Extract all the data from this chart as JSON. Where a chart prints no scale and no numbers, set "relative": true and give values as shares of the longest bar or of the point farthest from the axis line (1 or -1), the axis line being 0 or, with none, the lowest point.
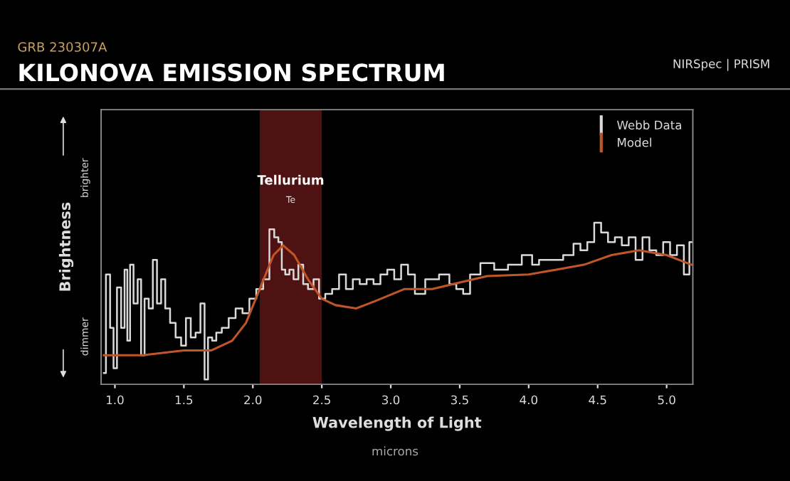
{
  "chart_data": {
    "type": "step",
    "title": "KILONOVA EMISSION SPECTRUM",
    "subtitle": "GRB 230307A",
    "xlabel": "Wavelength of Light",
    "ylabel": "Brightness",
    "relative": true,
    "annotations": [
      "Te",
      "brighter",
      "dimmer",
      "microns",
      "NIRSpec | PRISM"
    ],
    "xlim": [
      0.9,
      5.19
    ],
    "xticks": [
      {
        "value": 1,
        "label": "1.0"
      },
      {
        "value": 1.5,
        "label": "1.5"
      },
      {
        "value": 2,
        "label": "2.0"
      },
      {
        "value": 2.5,
        "label": "2.5"
      },
      {
        "value": 3,
        "label": "3.0"
      },
      {
        "value": 3.5,
        "label": "3.5"
      },
      {
        "value": 4,
        "label": "4.0"
      },
      {
        "value": 4.5,
        "label": "4.5"
      },
      {
        "value": 5,
        "label": "5.0"
      }
    ],
    "bands": [
      {
        "axis": "x",
        "from": 2.05,
        "to": 2.5,
        "label": "Tellurium",
        "color": "#6a1818"
      }
    ],
    "legend": "top right",
    "grid": false,
    "series": [
      {
        "name": "Webb Data",
        "color": "#d9d9d9",
        "x": [
          0.92,
          0.95,
          0.98,
          1.0,
          1.03,
          1.06,
          1.08,
          1.1,
          1.12,
          1.15,
          1.18,
          1.2,
          1.23,
          1.26,
          1.29,
          1.32,
          1.35,
          1.38,
          1.42,
          1.46,
          1.5,
          1.53,
          1.57,
          1.6,
          1.64,
          1.66,
          1.69,
          1.72,
          1.75,
          1.8,
          1.85,
          1.9,
          1.95,
          2.0,
          2.05,
          2.1,
          2.14,
          2.17,
          2.2,
          2.22,
          2.25,
          2.28,
          2.31,
          2.35,
          2.38,
          2.42,
          2.46,
          2.5,
          2.55,
          2.6,
          2.65,
          2.7,
          2.75,
          2.8,
          2.85,
          2.9,
          2.95,
          3.0,
          3.05,
          3.1,
          3.15,
          3.2,
          3.3,
          3.4,
          3.45,
          3.5,
          3.55,
          3.6,
          3.7,
          3.8,
          3.9,
          4.0,
          4.05,
          4.1,
          4.2,
          4.3,
          4.35,
          4.4,
          4.45,
          4.5,
          4.55,
          4.6,
          4.65,
          4.7,
          4.75,
          4.8,
          4.85,
          4.9,
          4.95,
          5.0,
          5.05,
          5.1,
          5.15,
          5.18
        ],
        "values": [
          0.07,
          0.68,
          0.35,
          0.1,
          0.6,
          0.35,
          0.71,
          0.27,
          0.74,
          0.5,
          0.65,
          0.18,
          0.53,
          0.47,
          0.77,
          0.5,
          0.65,
          0.47,
          0.38,
          0.29,
          0.24,
          0.41,
          0.29,
          0.32,
          0.5,
          0.03,
          0.29,
          0.27,
          0.32,
          0.35,
          0.41,
          0.47,
          0.44,
          0.53,
          0.59,
          0.65,
          0.96,
          0.91,
          0.88,
          0.71,
          0.68,
          0.71,
          0.65,
          0.74,
          0.62,
          0.59,
          0.65,
          0.53,
          0.56,
          0.59,
          0.68,
          0.59,
          0.65,
          0.62,
          0.65,
          0.62,
          0.68,
          0.71,
          0.65,
          0.74,
          0.68,
          0.56,
          0.65,
          0.68,
          0.62,
          0.59,
          0.56,
          0.68,
          0.75,
          0.71,
          0.74,
          0.8,
          0.74,
          0.77,
          0.77,
          0.8,
          0.87,
          0.83,
          0.88,
          1.0,
          0.94,
          0.88,
          0.91,
          0.86,
          0.91,
          0.77,
          0.91,
          0.83,
          0.8,
          0.88,
          0.8,
          0.86,
          0.68,
          0.88
        ]
      },
      {
        "name": "Model",
        "type": "line",
        "color": "#c0552a",
        "x": [
          0.92,
          1.2,
          1.5,
          1.7,
          1.85,
          1.95,
          2.05,
          2.15,
          2.22,
          2.3,
          2.4,
          2.5,
          2.6,
          2.75,
          2.9,
          3.1,
          3.3,
          3.5,
          3.7,
          4.0,
          4.2,
          4.4,
          4.6,
          4.8,
          5.0,
          5.18
        ],
        "values": [
          0.18,
          0.18,
          0.21,
          0.21,
          0.27,
          0.38,
          0.59,
          0.8,
          0.86,
          0.8,
          0.65,
          0.53,
          0.49,
          0.47,
          0.52,
          0.59,
          0.59,
          0.63,
          0.67,
          0.68,
          0.71,
          0.74,
          0.8,
          0.83,
          0.8,
          0.74
        ]
      }
    ]
  }
}
